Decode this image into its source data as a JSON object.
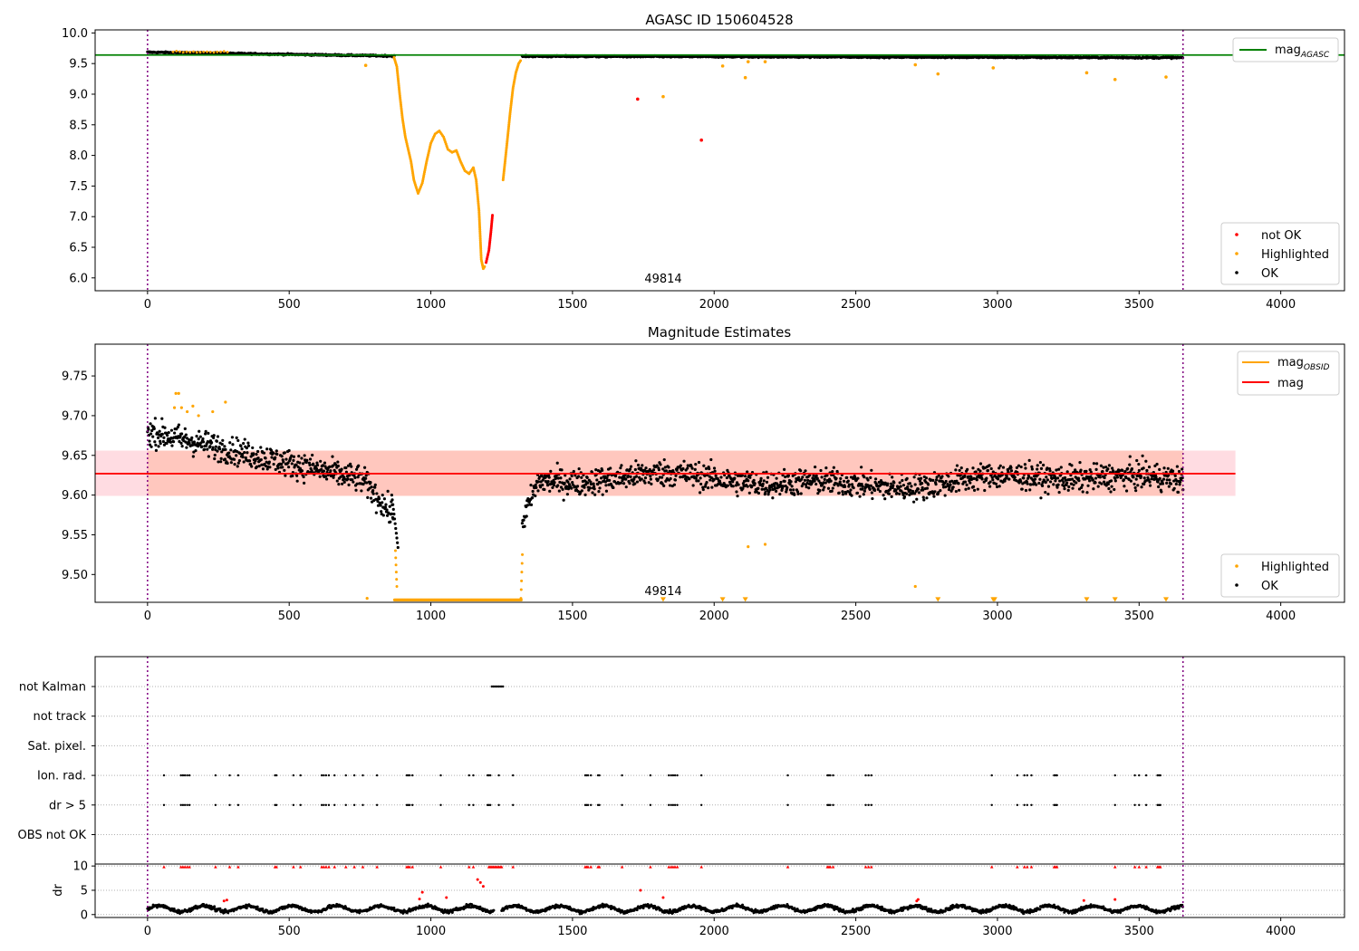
{
  "chart_data": [
    {
      "type": "scatter",
      "title": "AGASC ID 150604528",
      "xlim": [
        -185,
        4225
      ],
      "ylim": [
        5.79,
        10.05
      ],
      "xticks": [
        "0",
        "500",
        "1000",
        "1500",
        "2000",
        "2500",
        "3000",
        "3500",
        "4000"
      ],
      "yticks": [
        "6.0",
        "6.5",
        "7.0",
        "7.5",
        "8.0",
        "8.5",
        "9.0",
        "9.5",
        "10.0"
      ],
      "vlines": [
        0,
        3655
      ],
      "hline": {
        "name": "mag_AGASC",
        "value": 9.64,
        "color": "#008000"
      },
      "annotation": {
        "text": "49814",
        "x": 1820,
        "y": 5.85
      },
      "legend_lines": [
        {
          "label": "mag",
          "subscript": "AGASC",
          "color": "#008000"
        }
      ],
      "legend_points": [
        {
          "label": "not OK",
          "color": "#ff0000"
        },
        {
          "label": "Highlighted",
          "color": "#ffa500"
        },
        {
          "label": "OK",
          "color": "#000000"
        }
      ],
      "isolated_points": [
        {
          "x": 770,
          "y": 9.47,
          "status": "Highlighted"
        },
        {
          "x": 1730,
          "y": 8.92,
          "status": "not OK"
        },
        {
          "x": 1820,
          "y": 8.96,
          "status": "Highlighted"
        },
        {
          "x": 1955,
          "y": 8.25,
          "status": "not OK"
        },
        {
          "x": 2030,
          "y": 9.46,
          "status": "Highlighted"
        },
        {
          "x": 2110,
          "y": 9.27,
          "status": "Highlighted"
        },
        {
          "x": 2120,
          "y": 9.53,
          "status": "Highlighted"
        },
        {
          "x": 2180,
          "y": 9.53,
          "status": "Highlighted"
        },
        {
          "x": 2710,
          "y": 9.48,
          "status": "Highlighted"
        },
        {
          "x": 2790,
          "y": 9.33,
          "status": "Highlighted"
        },
        {
          "x": 2985,
          "y": 9.43,
          "status": "Highlighted"
        },
        {
          "x": 3315,
          "y": 9.35,
          "status": "Highlighted"
        },
        {
          "x": 3415,
          "y": 9.24,
          "status": "Highlighted"
        },
        {
          "x": 3595,
          "y": 9.28,
          "status": "Highlighted"
        }
      ],
      "dip_curve": [
        [
          870,
          9.6
        ],
        [
          880,
          9.45
        ],
        [
          890,
          9.0
        ],
        [
          900,
          8.6
        ],
        [
          910,
          8.3
        ],
        [
          920,
          8.1
        ],
        [
          930,
          7.9
        ],
        [
          940,
          7.6
        ],
        [
          955,
          7.38
        ],
        [
          970,
          7.55
        ],
        [
          985,
          7.9
        ],
        [
          1000,
          8.2
        ],
        [
          1015,
          8.35
        ],
        [
          1030,
          8.4
        ],
        [
          1045,
          8.3
        ],
        [
          1060,
          8.1
        ],
        [
          1075,
          8.05
        ],
        [
          1090,
          8.08
        ],
        [
          1105,
          7.9
        ],
        [
          1120,
          7.75
        ],
        [
          1135,
          7.7
        ],
        [
          1150,
          7.8
        ],
        [
          1160,
          7.6
        ],
        [
          1170,
          7.1
        ],
        [
          1178,
          6.3
        ],
        [
          1185,
          6.15
        ],
        [
          1192,
          6.2
        ]
      ],
      "dip_notok": [
        [
          1195,
          6.25
        ],
        [
          1205,
          6.45
        ],
        [
          1212,
          6.75
        ],
        [
          1218,
          7.05
        ]
      ],
      "rise_curve": [
        [
          1255,
          7.6
        ],
        [
          1262,
          7.9
        ],
        [
          1270,
          8.25
        ],
        [
          1280,
          8.7
        ],
        [
          1290,
          9.1
        ],
        [
          1300,
          9.35
        ],
        [
          1310,
          9.5
        ],
        [
          1320,
          9.57
        ]
      ]
    },
    {
      "type": "scatter",
      "title": "Magnitude Estimates",
      "xlim": [
        -185,
        4225
      ],
      "ylim": [
        9.465,
        9.79
      ],
      "xticks": [
        "0",
        "500",
        "1000",
        "1500",
        "2000",
        "2500",
        "3000",
        "3500",
        "4000"
      ],
      "yticks": [
        "9.50",
        "9.55",
        "9.60",
        "9.65",
        "9.70",
        "9.75"
      ],
      "vlines": [
        0,
        3655
      ],
      "band": {
        "low": 9.599,
        "high": 9.656,
        "x_end": 3840
      },
      "mag_line": {
        "name": "mag",
        "value": 9.627,
        "color": "#ff0000"
      },
      "annotation": {
        "text": "49814",
        "x": 1820,
        "y": 9.472
      },
      "legend_lines": [
        {
          "label": "mag",
          "subscript": "OBSID",
          "color": "#ffa500"
        },
        {
          "label": "mag",
          "subscript": "",
          "color": "#ff0000"
        }
      ],
      "legend_points": [
        {
          "label": "Highlighted",
          "color": "#ffa500"
        },
        {
          "label": "OK",
          "color": "#000000"
        }
      ],
      "highlighted_points": [
        [
          95,
          9.71
        ],
        [
          100,
          9.728
        ],
        [
          110,
          9.728
        ],
        [
          120,
          9.71
        ],
        [
          140,
          9.705
        ],
        [
          160,
          9.712
        ],
        [
          180,
          9.7
        ],
        [
          230,
          9.705
        ],
        [
          275,
          9.717
        ],
        [
          2120,
          9.535
        ],
        [
          2180,
          9.538
        ],
        [
          2710,
          9.485
        ],
        [
          775,
          9.47
        ]
      ],
      "offscale_markers": [
        1820,
        2030,
        2110,
        2790,
        2985,
        2990,
        3315,
        3415,
        3595
      ]
    },
    {
      "type": "scatter",
      "title": "",
      "xlim": [
        -185,
        4225
      ],
      "xticks": [
        "0",
        "500",
        "1000",
        "1500",
        "2000",
        "2500",
        "3000",
        "3500",
        "4000"
      ],
      "vlines": [
        0,
        3655
      ],
      "flag_categories": [
        "not Kalman",
        "not track",
        "Sat. pixel.",
        "Ion. rad.",
        "dr > 5",
        "OBS not OK"
      ],
      "flag_points": {
        "not Kalman": [
          1215,
          1220,
          1225,
          1230,
          1235,
          1240,
          1245,
          1250,
          1255
        ],
        "not track": [],
        "Sat. pixel.": [],
        "Ion. rad.": [
          58,
          118,
          125,
          132,
          140,
          148,
          240,
          290,
          320,
          450,
          455,
          515,
          540,
          615,
          622,
          630,
          640,
          660,
          700,
          730,
          760,
          810,
          915,
          920,
          925,
          935,
          1035,
          1135,
          1150,
          1200,
          1205,
          1210,
          1240,
          1290,
          1545,
          1550,
          1555,
          1565,
          1590,
          1595,
          1675,
          1775,
          1840,
          1848,
          1855,
          1862,
          1870,
          1955,
          2260,
          2400,
          2405,
          2410,
          2420,
          2535,
          2545,
          2555,
          2980,
          3070,
          3095,
          3105,
          3120,
          3200,
          3205,
          3210,
          3415,
          3485,
          3500,
          3525,
          3565,
          3570,
          3575
        ],
        "dr > 5": [
          58,
          118,
          125,
          132,
          140,
          148,
          240,
          290,
          320,
          450,
          455,
          515,
          540,
          615,
          622,
          630,
          640,
          660,
          700,
          730,
          760,
          810,
          915,
          920,
          925,
          935,
          1035,
          1135,
          1150,
          1200,
          1205,
          1210,
          1240,
          1290,
          1545,
          1550,
          1555,
          1565,
          1590,
          1595,
          1675,
          1775,
          1840,
          1848,
          1855,
          1862,
          1870,
          1955,
          2260,
          2400,
          2405,
          2410,
          2420,
          2535,
          2545,
          2555,
          2980,
          3070,
          3095,
          3105,
          3120,
          3200,
          3205,
          3210,
          3415,
          3485,
          3500,
          3525,
          3565,
          3570,
          3575
        ],
        "OBS not OK": []
      },
      "dr_ylabel": "dr",
      "dr_yticks": [
        "0",
        "5",
        "10"
      ],
      "dr_ylim": [
        -0.6,
        10.4
      ],
      "dr_offscale_red": [
        58,
        118,
        125,
        132,
        140,
        148,
        240,
        290,
        320,
        450,
        455,
        515,
        540,
        615,
        622,
        630,
        640,
        660,
        700,
        730,
        760,
        810,
        915,
        920,
        925,
        935,
        1035,
        1135,
        1150,
        1205,
        1210,
        1215,
        1220,
        1225,
        1230,
        1235,
        1240,
        1245,
        1250,
        1290,
        1545,
        1550,
        1555,
        1565,
        1590,
        1595,
        1675,
        1775,
        1840,
        1848,
        1855,
        1862,
        1870,
        1955,
        2260,
        2400,
        2405,
        2410,
        2420,
        2535,
        2545,
        2555,
        2980,
        3070,
        3095,
        3105,
        3120,
        3200,
        3205,
        3210,
        3415,
        3485,
        3500,
        3525,
        3565,
        3570,
        3575
      ],
      "dr_red_points": [
        [
          960,
          3.2
        ],
        [
          970,
          4.6
        ],
        [
          1055,
          3.5
        ],
        [
          1165,
          7.2
        ],
        [
          1175,
          6.6
        ],
        [
          1185,
          5.8
        ],
        [
          1740,
          5.0
        ],
        [
          1820,
          3.5
        ],
        [
          2715,
          2.8
        ],
        [
          2720,
          3.1
        ],
        [
          3305,
          2.9
        ],
        [
          3415,
          3.1
        ],
        [
          270,
          2.8
        ],
        [
          280,
          3.0
        ]
      ]
    }
  ]
}
